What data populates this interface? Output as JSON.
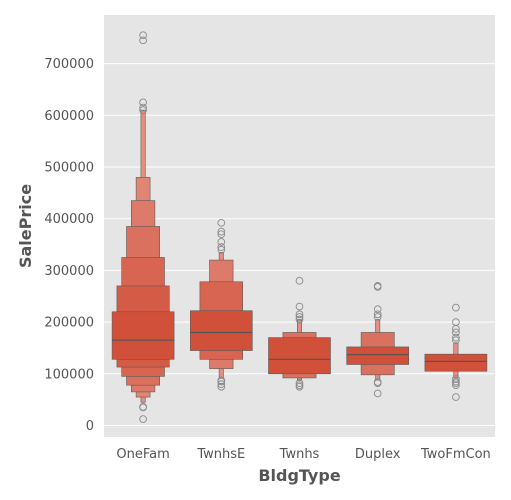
{
  "chart_data": {
    "type": "boxenplot",
    "xlabel": "BldgType",
    "ylabel": "SalePrice",
    "categories": [
      "OneFam",
      "TwnhsE",
      "Twnhs",
      "Duplex",
      "TwoFmCon"
    ],
    "ylim": [
      -20000,
      785000
    ],
    "yticks": [
      0,
      100000,
      200000,
      300000,
      400000,
      500000,
      600000,
      700000
    ],
    "ytick_labels": [
      "0",
      "100000",
      "200000",
      "300000",
      "400000",
      "500000",
      "600000",
      "700000"
    ],
    "grid": true,
    "colors": {
      "background": "#e5e5e5",
      "grid": "#ffffff",
      "box_darkest": "#d1503a",
      "box_lightest": "#eaa499",
      "median": "#555555",
      "outlier_edge": "#8a8a8a",
      "tick_text": "#555555"
    },
    "series": [
      {
        "category": "OneFam",
        "median": 165000,
        "levels": [
          [
            128000,
            220000
          ],
          [
            113000,
            270000
          ],
          [
            95000,
            325000
          ],
          [
            78000,
            385000
          ],
          [
            65000,
            435000
          ],
          [
            55000,
            480000
          ],
          [
            45000,
            610000
          ]
        ],
        "outliers": [
          12500,
          35000,
          36000,
          610000,
          615000,
          625000,
          745000,
          755000
        ]
      },
      {
        "category": "TwnhsE",
        "median": 180000,
        "levels": [
          [
            145000,
            222000
          ],
          [
            128000,
            278000
          ],
          [
            110000,
            320000
          ],
          [
            92000,
            335000
          ]
        ],
        "outliers": [
          75000,
          80000,
          85000,
          87000,
          340000,
          345000,
          355000,
          370000,
          375000,
          392000
        ]
      },
      {
        "category": "Twnhs",
        "median": 128000,
        "levels": [
          [
            100000,
            170000
          ],
          [
            92000,
            180000
          ],
          [
            87000,
            205000
          ]
        ],
        "outliers": [
          75000,
          78000,
          82000,
          205000,
          210000,
          215000,
          230000,
          280000
        ]
      },
      {
        "category": "Duplex",
        "median": 137000,
        "levels": [
          [
            118000,
            152000
          ],
          [
            98000,
            180000
          ],
          [
            88000,
            205000
          ]
        ],
        "outliers": [
          62000,
          82000,
          84000,
          210000,
          215000,
          225000,
          268000,
          270000
        ]
      },
      {
        "category": "TwoFmCon",
        "median": 124000,
        "levels": [
          [
            105000,
            138000
          ],
          [
            93000,
            160000
          ]
        ],
        "outliers": [
          55000,
          78000,
          82000,
          85000,
          90000,
          165000,
          170000,
          180000,
          187000,
          200000,
          228000
        ]
      }
    ]
  }
}
